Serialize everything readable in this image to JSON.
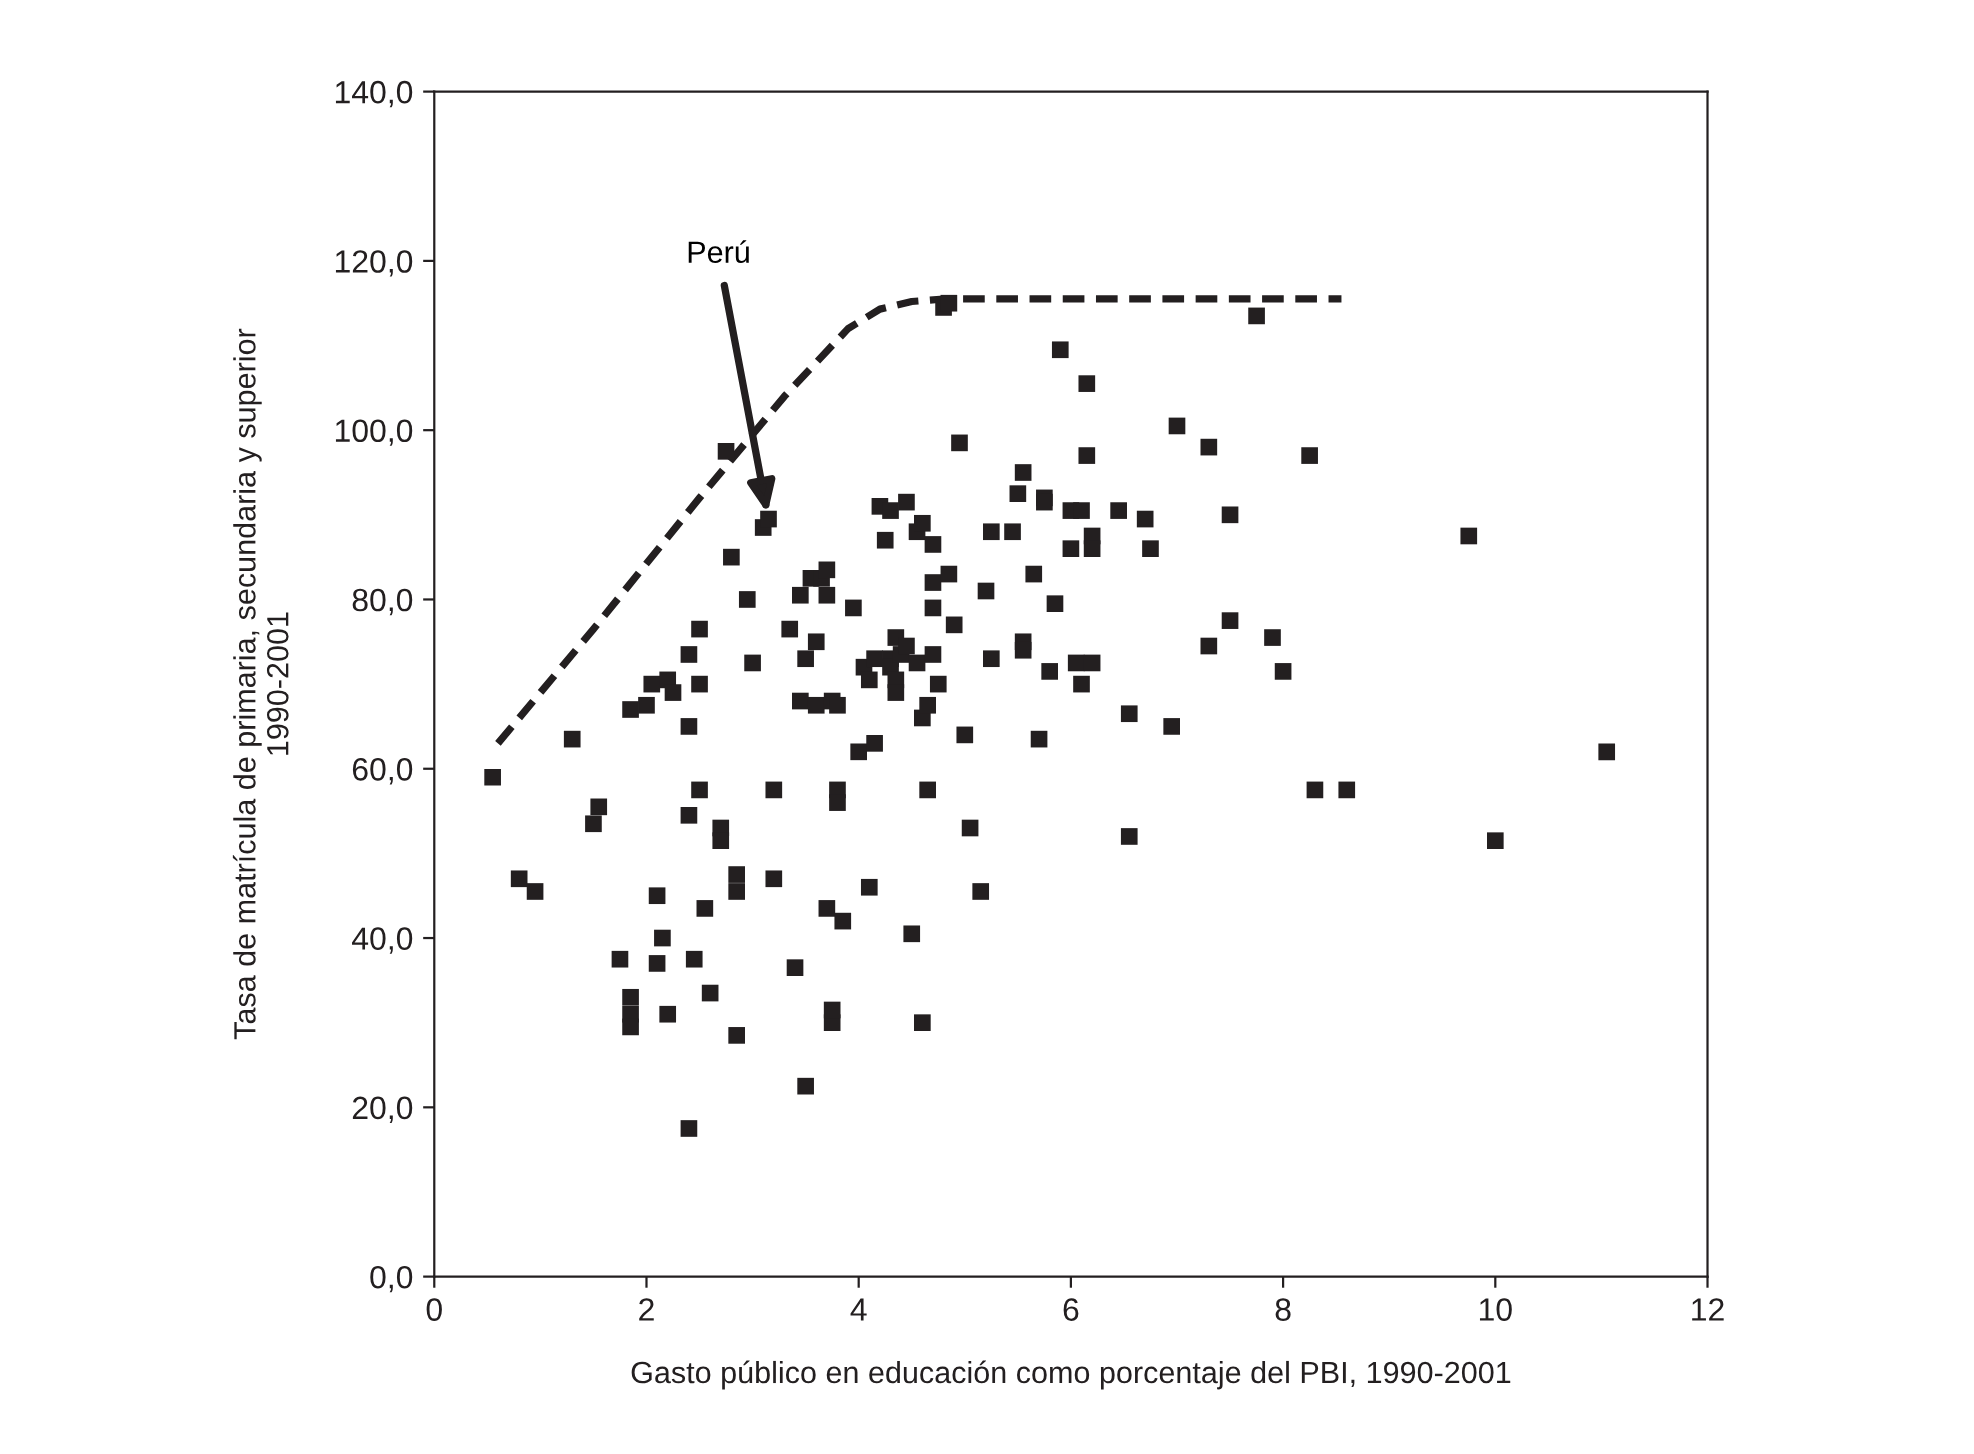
{
  "chart_data": {
    "type": "scatter",
    "xlabel": "Gasto público en educación como porcentaje del PBI, 1990-2001",
    "ylabel": "Tasa de matrícula de primaria, secundaria y superior\n1990-2001",
    "xlim": [
      0,
      12
    ],
    "xticks": [
      0,
      2,
      4,
      6,
      8,
      10,
      12
    ],
    "ylim": [
      0,
      140
    ],
    "yticks": [
      {
        "value": 0,
        "label": "0,0"
      },
      {
        "value": 20,
        "label": "20,0"
      },
      {
        "value": 40,
        "label": "40,0"
      },
      {
        "value": 60,
        "label": "60,0"
      },
      {
        "value": 80,
        "label": "80,0"
      },
      {
        "value": 100,
        "label": "100,0"
      },
      {
        "value": 120,
        "label": "120,0"
      },
      {
        "value": 140,
        "label": "140,0"
      }
    ],
    "grid": false,
    "legend": false,
    "annotations": [
      {
        "text": "Perú",
        "x": 3.15,
        "y": 89.5
      }
    ],
    "series": [
      {
        "marker": "square",
        "color": "#231f20",
        "x": [
          0.55,
          0.8,
          0.95,
          1.3,
          1.5,
          1.55,
          1.75,
          1.85,
          1.85,
          1.85,
          1.85,
          2.0,
          2.05,
          2.1,
          2.1,
          2.15,
          2.2,
          2.2,
          2.25,
          2.4,
          2.4,
          2.4,
          2.4,
          2.45,
          2.5,
          2.5,
          2.5,
          2.55,
          2.6,
          2.7,
          2.7,
          2.75,
          2.8,
          2.85,
          2.85,
          2.85,
          2.95,
          3.0,
          3.1,
          3.15,
          3.2,
          3.2,
          3.35,
          3.4,
          3.45,
          3.45,
          3.5,
          3.5,
          3.55,
          3.6,
          3.6,
          3.65,
          3.7,
          3.7,
          3.75,
          3.7,
          3.75,
          3.75,
          3.8,
          3.8,
          3.8,
          3.85,
          3.95,
          4.0,
          4.05,
          4.1,
          4.1,
          4.15,
          4.15,
          4.2,
          4.25,
          4.3,
          4.3,
          4.3,
          4.35,
          4.35,
          4.35,
          4.4,
          4.45,
          4.45,
          4.5,
          4.55,
          4.55,
          4.6,
          4.6,
          4.6,
          4.65,
          4.65,
          4.7,
          4.7,
          4.7,
          4.7,
          4.75,
          4.8,
          4.85,
          4.85,
          4.95,
          4.9,
          5.0,
          5.05,
          5.15,
          5.2,
          5.25,
          5.25,
          5.45,
          5.5,
          5.55,
          5.55,
          5.55,
          5.65,
          5.7,
          5.75,
          5.75,
          5.8,
          5.85,
          5.9,
          6.0,
          6.0,
          6.05,
          6.1,
          6.1,
          6.15,
          6.15,
          6.2,
          6.2,
          6.2,
          6.45,
          6.55,
          6.55,
          6.7,
          6.75,
          6.95,
          7.0,
          7.3,
          7.3,
          7.5,
          7.5,
          7.75,
          7.9,
          8.0,
          8.25,
          8.3,
          8.6,
          9.75,
          10.0,
          11.05
        ],
        "values": [
          59,
          47,
          45.5,
          63.5,
          53.5,
          55.5,
          37.5,
          33,
          31,
          29.5,
          67,
          67.5,
          70,
          45,
          37,
          40,
          31,
          70.5,
          69,
          73.5,
          65,
          54.5,
          17.5,
          37.5,
          57.5,
          76.5,
          70,
          43.5,
          33.5,
          53,
          51.5,
          97.5,
          85,
          47.5,
          45.5,
          28.5,
          80,
          72.5,
          88.5,
          89.5,
          57.5,
          47,
          76.5,
          36.5,
          80.5,
          68,
          73,
          22.5,
          82.5,
          67.5,
          75,
          82.5,
          83.5,
          80.5,
          68,
          43.5,
          30,
          31.5,
          57.5,
          56,
          67.5,
          42,
          79,
          62,
          72,
          70.5,
          46,
          73,
          63,
          91,
          87,
          90.5,
          73,
          72,
          75.5,
          70.5,
          69,
          73.5,
          91.5,
          74.5,
          40.5,
          88,
          72.5,
          89,
          66,
          30,
          67.5,
          57.5,
          86.5,
          82,
          79,
          73.5,
          70,
          114.5,
          83,
          115,
          98.5,
          77,
          64,
          53,
          45.5,
          81,
          73,
          88,
          88,
          92.5,
          95,
          75,
          74,
          83,
          63.5,
          92,
          91.5,
          71.5,
          79.5,
          109.5,
          90.5,
          86,
          72.5,
          90.5,
          70,
          105.5,
          97,
          87.5,
          86,
          72.5,
          90.5,
          66.5,
          52,
          89.5,
          86,
          65,
          100.5,
          98,
          74.5,
          90,
          77.5,
          113.5,
          75.5,
          71.5,
          97,
          57.5,
          57.5,
          87.5,
          51.5,
          62
        ]
      },
      {
        "type": "line",
        "marker": "none",
        "line_style": "dashed",
        "color": "#231f20",
        "x": [
          0.6,
          1.5,
          2.5,
          3.3,
          3.9,
          4.2,
          4.5,
          4.8,
          8.55
        ],
        "values": [
          63,
          76.5,
          92,
          104,
          112,
          114.3,
          115.2,
          115.5,
          115.5
        ]
      }
    ]
  }
}
